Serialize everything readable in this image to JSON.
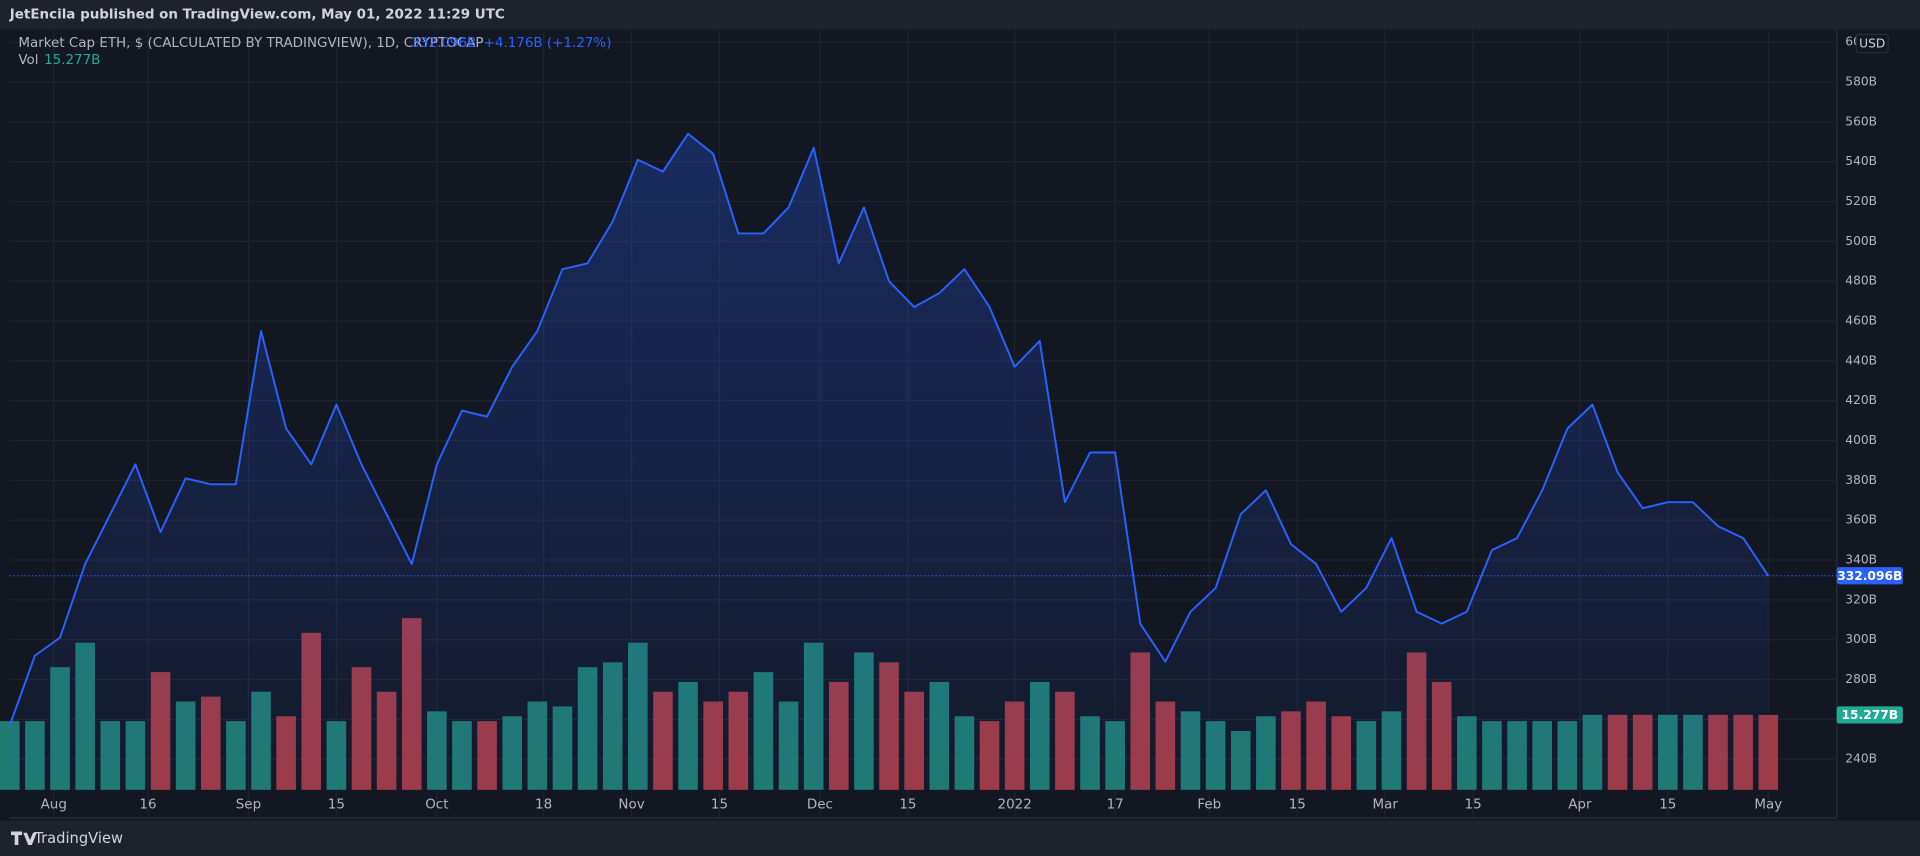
{
  "publisher": "JetEncila published on TradingView.com, May 01, 2022 11:29 UTC",
  "branding": "TradingView",
  "chart_data": {
    "type": "line",
    "title": "Market Cap ETH, $ (CALCULATED BY TRADINGVIEW), 1D, CRYPTOCAP",
    "last_value_label": "332.096B",
    "change_label": "+4.176B (+1.27%)",
    "volume_label": "15.277B",
    "currency": "USD",
    "grid": true,
    "x": [
      0,
      4,
      8,
      12,
      16,
      20,
      24,
      28,
      32,
      36,
      40,
      44,
      48,
      52,
      56,
      60,
      64,
      68,
      72,
      76,
      80,
      84,
      88,
      92,
      96,
      100,
      104,
      108,
      112,
      116,
      120,
      124,
      128,
      132,
      136,
      140,
      144,
      148,
      152,
      156,
      160,
      164,
      168,
      172,
      176,
      180,
      184,
      188,
      192,
      196,
      200,
      204,
      208,
      212,
      216,
      220,
      224,
      228,
      232,
      236,
      240,
      244,
      248,
      252,
      256,
      260,
      264,
      268,
      272,
      276,
      280
    ],
    "xlim": [
      0,
      290.9
    ],
    "xticks": [
      {
        "value": 7,
        "label": "Aug"
      },
      {
        "value": 22,
        "label": "16"
      },
      {
        "value": 38,
        "label": "Sep"
      },
      {
        "value": 52,
        "label": "15"
      },
      {
        "value": 68,
        "label": "Oct"
      },
      {
        "value": 85,
        "label": "18"
      },
      {
        "value": 99,
        "label": "Nov"
      },
      {
        "value": 113,
        "label": "15"
      },
      {
        "value": 129,
        "label": "Dec"
      },
      {
        "value": 143,
        "label": "15"
      },
      {
        "value": 160,
        "label": "2022"
      },
      {
        "value": 176,
        "label": "17"
      },
      {
        "value": 191,
        "label": "Feb"
      },
      {
        "value": 205,
        "label": "15"
      },
      {
        "value": 219,
        "label": "Mar"
      },
      {
        "value": 233,
        "label": "15"
      },
      {
        "value": 250,
        "label": "Apr"
      },
      {
        "value": 264,
        "label": "15"
      },
      {
        "value": 280,
        "label": "May"
      }
    ],
    "ylim": [
      224.6,
      606.4
    ],
    "yticks": [
      {
        "value": 240,
        "label": "240B"
      },
      {
        "value": 260,
        "label": "260B"
      },
      {
        "value": 280,
        "label": "280B"
      },
      {
        "value": 300,
        "label": "300B"
      },
      {
        "value": 320,
        "label": "320B"
      },
      {
        "value": 340,
        "label": "340B"
      },
      {
        "value": 360,
        "label": "360B"
      },
      {
        "value": 380,
        "label": "380B"
      },
      {
        "value": 400,
        "label": "400B"
      },
      {
        "value": 420,
        "label": "420B"
      },
      {
        "value": 440,
        "label": "440B"
      },
      {
        "value": 460,
        "label": "460B"
      },
      {
        "value": 480,
        "label": "480B"
      },
      {
        "value": 500,
        "label": "500B"
      },
      {
        "value": 520,
        "label": "520B"
      },
      {
        "value": 540,
        "label": "540B"
      },
      {
        "value": 560,
        "label": "560B"
      },
      {
        "value": 580,
        "label": "580B"
      },
      {
        "value": 600,
        "label": "600B"
      }
    ],
    "y2lim": [
      0,
      155
    ],
    "series": [
      {
        "name": "Market Cap ETH, $ (CALCULATED BY TRADINGVIEW), 1D, CRYPTOCAP",
        "color": "#2962ff",
        "values": [
          257,
          292,
          301,
          338,
          363,
          388,
          354,
          381,
          378,
          378,
          455,
          406,
          388,
          418,
          388,
          363,
          338,
          388,
          415,
          412,
          437,
          455,
          486,
          489,
          510,
          541,
          535,
          554,
          544,
          504,
          504,
          517,
          547,
          489,
          517,
          480,
          467,
          474,
          486,
          467,
          437,
          450,
          369,
          394,
          394,
          308,
          289,
          314,
          326,
          363,
          375,
          348,
          338,
          314,
          326,
          351,
          314,
          308,
          314,
          345,
          351,
          375,
          406,
          418,
          384,
          366,
          369,
          369,
          357,
          351,
          332.096
        ]
      },
      {
        "name": "Vol",
        "axis": "y2",
        "color": "#22ab94",
        "up_color": "#1f7a70",
        "down_color": "#a03a44",
        "values": [
          14,
          14,
          25,
          30,
          14,
          14,
          24,
          18,
          19,
          14,
          20,
          15,
          32,
          14,
          25,
          20,
          35,
          16,
          14,
          14,
          15,
          18,
          17,
          25,
          26,
          30,
          20,
          22,
          18,
          20,
          24,
          18,
          30,
          22,
          28,
          26,
          20,
          22,
          15,
          14,
          18,
          22,
          20,
          15,
          14,
          28,
          18,
          16,
          14,
          12,
          15,
          16,
          18,
          15,
          14,
          16,
          28,
          22,
          15,
          14,
          14,
          14,
          14,
          15.3,
          15.3,
          15.3,
          15.3,
          15.3,
          15.3,
          15.3,
          15.277
        ]
      }
    ]
  }
}
